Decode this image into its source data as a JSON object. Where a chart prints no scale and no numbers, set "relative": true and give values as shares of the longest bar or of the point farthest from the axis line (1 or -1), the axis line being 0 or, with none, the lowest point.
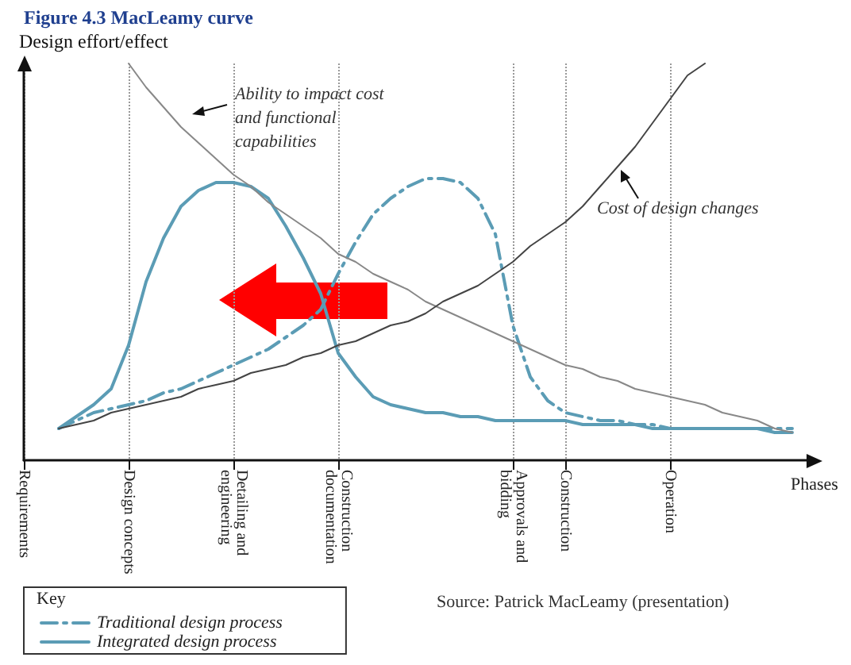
{
  "chart_data": {
    "type": "line",
    "title": "Figure 4.3 MacLeamy curve",
    "xlabel": "Phases",
    "ylabel": "Design effort/effect",
    "legend_title": "Key",
    "relative": true,
    "grid": "x",
    "legend": "bottom left",
    "marker": "none",
    "line_style": "solid",
    "categories": [
      "Requirements",
      null,
      null,
      null,
      null,
      null,
      "Design concepts",
      null,
      null,
      null,
      null,
      null,
      "Detailing and engineering",
      null,
      null,
      null,
      null,
      null,
      "Construction documentation",
      null,
      null,
      null,
      null,
      null,
      null,
      null,
      null,
      null,
      "Approvals and bidding",
      null,
      null,
      "Construction",
      null,
      null,
      null,
      null,
      null,
      "Operation",
      null,
      null,
      null,
      null,
      null,
      null,
      null,
      null
    ],
    "series": [
      {
        "name": "Traditional design process",
        "color": "#5b9cb5",
        "line_style": "dashed",
        "values": [
          null,
          null,
          0.08,
          0.1,
          0.12,
          0.13,
          0.14,
          0.15,
          0.17,
          0.18,
          0.2,
          0.22,
          0.24,
          0.26,
          0.28,
          0.31,
          0.34,
          0.38,
          0.47,
          0.55,
          0.62,
          0.66,
          0.69,
          0.71,
          0.71,
          0.7,
          0.66,
          0.57,
          0.34,
          0.21,
          0.15,
          0.12,
          0.11,
          0.1,
          0.1,
          0.09,
          0.09,
          0.08,
          0.08,
          0.08,
          0.08,
          0.08,
          0.08,
          0.08,
          0.08,
          null
        ]
      },
      {
        "name": "Integrated design process",
        "color": "#5b9cb5",
        "values": [
          null,
          null,
          0.08,
          0.11,
          0.14,
          0.18,
          0.29,
          0.45,
          0.56,
          0.64,
          0.68,
          0.7,
          0.7,
          0.69,
          0.66,
          0.59,
          0.51,
          0.42,
          0.27,
          0.21,
          0.16,
          0.14,
          0.13,
          0.12,
          0.12,
          0.11,
          0.11,
          0.1,
          0.1,
          0.1,
          0.1,
          0.1,
          0.09,
          0.09,
          0.09,
          0.09,
          0.08,
          0.08,
          0.08,
          0.08,
          0.08,
          0.08,
          0.08,
          0.07,
          0.07,
          null
        ]
      },
      {
        "color": "#888888",
        "values": [
          null,
          null,
          null,
          null,
          null,
          null,
          1.0,
          0.94,
          0.89,
          0.84,
          0.8,
          0.76,
          0.72,
          0.69,
          0.65,
          0.62,
          0.59,
          0.56,
          0.52,
          0.5,
          0.47,
          0.45,
          0.43,
          0.4,
          0.38,
          0.36,
          0.34,
          0.32,
          0.3,
          0.28,
          0.26,
          0.24,
          0.23,
          0.21,
          0.2,
          0.18,
          0.17,
          0.16,
          0.15,
          0.14,
          0.12,
          0.11,
          0.1,
          0.08,
          0.07,
          null
        ]
      },
      {
        "color": "#444444",
        "values": [
          null,
          null,
          0.08,
          0.09,
          0.1,
          0.12,
          0.13,
          0.14,
          0.15,
          0.16,
          0.18,
          0.19,
          0.2,
          0.22,
          0.23,
          0.24,
          0.26,
          0.27,
          0.29,
          0.3,
          0.32,
          0.34,
          0.35,
          0.37,
          0.4,
          0.42,
          0.44,
          0.47,
          0.5,
          0.54,
          0.57,
          0.6,
          0.64,
          0.69,
          0.74,
          0.79,
          0.85,
          0.91,
          0.97,
          1.0,
          null,
          null,
          null,
          null,
          null,
          null
        ]
      }
    ],
    "annotations": [
      "Ability to impact cost and functional capabilities",
      "Cost of design changes",
      "Source: Patrick MacLeamy (presentation)"
    ]
  }
}
